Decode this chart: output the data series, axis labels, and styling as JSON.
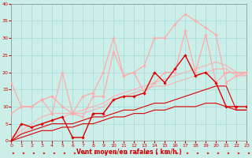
{
  "xlabel": "Vent moyen/en rafales ( km/h )",
  "xlim": [
    0,
    23
  ],
  "ylim": [
    0,
    40
  ],
  "xticks": [
    0,
    1,
    2,
    3,
    4,
    5,
    6,
    7,
    8,
    9,
    10,
    11,
    12,
    13,
    14,
    15,
    16,
    17,
    18,
    19,
    20,
    21,
    22,
    23
  ],
  "yticks": [
    0,
    5,
    10,
    15,
    20,
    25,
    30,
    35,
    40
  ],
  "bg_color": "#cceee8",
  "grid_color": "#aadddd",
  "series": [
    {
      "x": [
        0,
        1,
        2,
        3,
        4,
        5,
        6,
        7,
        8,
        9,
        10,
        11,
        12,
        13,
        14,
        15,
        16,
        17,
        18,
        19,
        20,
        21,
        22,
        23
      ],
      "y": [
        0,
        5,
        4,
        5,
        6,
        7,
        1,
        1,
        8,
        8,
        12,
        13,
        13,
        14,
        20,
        17,
        21,
        25,
        19,
        20,
        17,
        10,
        10,
        10
      ],
      "color": "#dd0000",
      "marker": "D",
      "markersize": 1.8,
      "linewidth": 1.0,
      "zorder": 5
    },
    {
      "x": [
        0,
        1,
        2,
        3,
        4,
        5,
        6,
        7,
        8,
        9,
        10,
        11,
        12,
        13,
        14,
        15,
        16,
        17,
        18,
        19,
        20,
        21,
        22,
        23
      ],
      "y": [
        0,
        1,
        2,
        3,
        3,
        4,
        4,
        5,
        5,
        6,
        7,
        7,
        8,
        8,
        9,
        9,
        10,
        10,
        10,
        11,
        11,
        10,
        9,
        9
      ],
      "color": "#dd0000",
      "marker": null,
      "markersize": 0,
      "linewidth": 0.8,
      "zorder": 3
    },
    {
      "x": [
        0,
        1,
        2,
        3,
        4,
        5,
        6,
        7,
        8,
        9,
        10,
        11,
        12,
        13,
        14,
        15,
        16,
        17,
        18,
        19,
        20,
        21,
        22,
        23
      ],
      "y": [
        0,
        2,
        3,
        4,
        5,
        5,
        5,
        6,
        7,
        7,
        8,
        9,
        9,
        10,
        11,
        11,
        12,
        13,
        14,
        15,
        16,
        16,
        9,
        9
      ],
      "color": "#dd0000",
      "marker": null,
      "markersize": 0,
      "linewidth": 0.8,
      "zorder": 3
    },
    {
      "x": [
        0,
        1,
        2,
        3,
        4,
        5,
        6,
        7,
        8,
        9,
        10,
        11,
        12,
        13,
        14,
        15,
        16,
        17,
        18,
        19,
        20,
        21,
        22,
        23
      ],
      "y": [
        17,
        10,
        10,
        12,
        8,
        20,
        8,
        7,
        13,
        13,
        26,
        19,
        20,
        14,
        17,
        20,
        20,
        32,
        20,
        31,
        17,
        20,
        20,
        20
      ],
      "color": "#ffaaaa",
      "marker": "D",
      "markersize": 1.8,
      "linewidth": 0.9,
      "zorder": 4
    },
    {
      "x": [
        0,
        1,
        2,
        3,
        4,
        5,
        6,
        7,
        8,
        9,
        10,
        11,
        12,
        13,
        14,
        15,
        16,
        17,
        18,
        19,
        20,
        21,
        22,
        23
      ],
      "y": [
        8,
        10,
        10,
        12,
        13,
        10,
        8,
        13,
        14,
        20,
        30,
        19,
        20,
        22,
        30,
        30,
        34,
        37,
        35,
        33,
        31,
        17,
        19,
        20
      ],
      "color": "#ffaaaa",
      "marker": "D",
      "markersize": 1.8,
      "linewidth": 0.9,
      "zorder": 4
    },
    {
      "x": [
        0,
        1,
        2,
        3,
        4,
        5,
        6,
        7,
        8,
        9,
        10,
        11,
        12,
        13,
        14,
        15,
        16,
        17,
        18,
        19,
        20,
        21,
        22,
        23
      ],
      "y": [
        1,
        3,
        5,
        7,
        8,
        8,
        8,
        9,
        10,
        11,
        13,
        14,
        15,
        16,
        17,
        18,
        19,
        20,
        21,
        22,
        23,
        22,
        20,
        19
      ],
      "color": "#ffaaaa",
      "marker": null,
      "markersize": 0,
      "linewidth": 0.7,
      "zorder": 2
    },
    {
      "x": [
        0,
        1,
        2,
        3,
        4,
        5,
        6,
        7,
        8,
        9,
        10,
        11,
        12,
        13,
        14,
        15,
        16,
        17,
        18,
        19,
        20,
        21,
        22,
        23
      ],
      "y": [
        1,
        2,
        4,
        5,
        6,
        7,
        8,
        8,
        9,
        10,
        12,
        13,
        14,
        15,
        16,
        16,
        17,
        18,
        19,
        20,
        21,
        21,
        19,
        19
      ],
      "color": "#ffaaaa",
      "marker": null,
      "markersize": 0,
      "linewidth": 0.7,
      "zorder": 2
    }
  ],
  "arrow_color": "#cc0000",
  "label_color": "#cc0000",
  "xlabel_fontsize": 5.5,
  "tick_fontsize": 4.5
}
